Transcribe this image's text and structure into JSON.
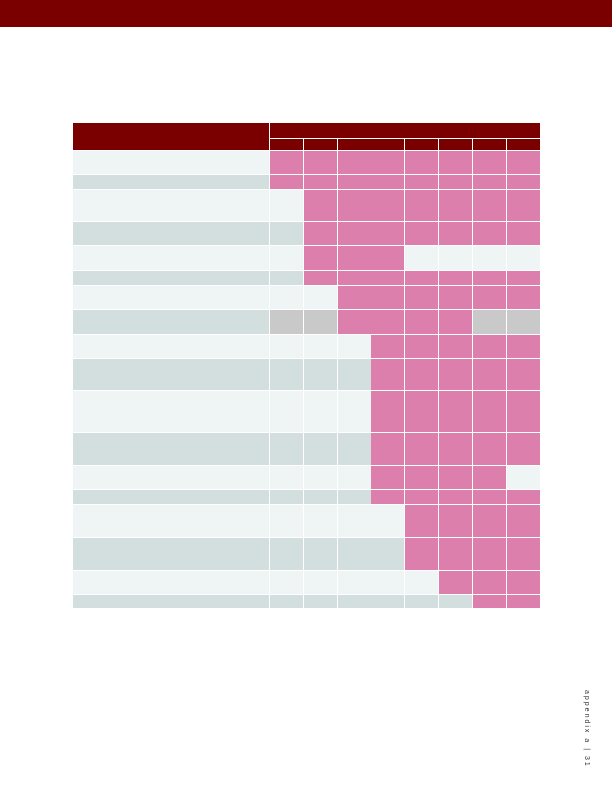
{
  "colors": {
    "header": "#7a0000",
    "filled": "#dc7fac",
    "gray": "#c9c9c9",
    "row_light": "#eff5f5",
    "row_dark": "#d3dfdf"
  },
  "matrix": {
    "columns": 8,
    "rows": [
      {
        "cells": [
          "fill",
          "fill",
          "fill",
          "fill",
          "fill",
          "fill",
          "fill",
          "fill"
        ]
      },
      {
        "cells": [
          "fill",
          "fill",
          "fill",
          "fill",
          "fill",
          "fill",
          "fill",
          "fill"
        ]
      },
      {
        "cells": [
          "none",
          "fill",
          "fill",
          "fill",
          "fill",
          "fill",
          "fill",
          "fill"
        ]
      },
      {
        "cells": [
          "none",
          "fill",
          "fill",
          "fill",
          "fill",
          "fill",
          "fill",
          "fill"
        ]
      },
      {
        "cells": [
          "none",
          "fill",
          "fill",
          "fill",
          "none",
          "none",
          "none",
          "none"
        ]
      },
      {
        "cells": [
          "none",
          "fill",
          "fill",
          "fill",
          "fill",
          "fill",
          "fill",
          "fill"
        ]
      },
      {
        "cells": [
          "none",
          "none",
          "fill",
          "fill",
          "fill",
          "fill",
          "fill",
          "fill"
        ]
      },
      {
        "cells": [
          "gray",
          "gray",
          "fill",
          "fill",
          "fill",
          "fill",
          "gray",
          "gray"
        ]
      },
      {
        "cells": [
          "none",
          "none",
          "none",
          "fill",
          "fill",
          "fill",
          "fill",
          "fill"
        ]
      },
      {
        "cells": [
          "none",
          "none",
          "none",
          "fill",
          "fill",
          "fill",
          "fill",
          "fill"
        ]
      },
      {
        "cells": [
          "none",
          "none",
          "none",
          "fill",
          "fill",
          "fill",
          "fill",
          "fill"
        ]
      },
      {
        "cells": [
          "none",
          "none",
          "none",
          "fill",
          "fill",
          "fill",
          "fill",
          "fill"
        ]
      },
      {
        "cells": [
          "none",
          "none",
          "none",
          "fill",
          "fill",
          "fill",
          "fill",
          "none"
        ]
      },
      {
        "cells": [
          "none",
          "none",
          "none",
          "fill",
          "fill",
          "fill",
          "fill",
          "fill"
        ]
      },
      {
        "cells": [
          "none",
          "none",
          "none",
          "none",
          "fill",
          "fill",
          "fill",
          "fill"
        ]
      },
      {
        "cells": [
          "none",
          "none",
          "none",
          "none",
          "fill",
          "fill",
          "fill",
          "fill"
        ]
      },
      {
        "cells": [
          "none",
          "none",
          "none",
          "none",
          "none",
          "fill",
          "fill",
          "fill"
        ]
      },
      {
        "cells": [
          "none",
          "none",
          "none",
          "none",
          "none",
          "none",
          "fill",
          "fill"
        ]
      }
    ]
  },
  "footer": {
    "text": "appendix a | 31"
  }
}
